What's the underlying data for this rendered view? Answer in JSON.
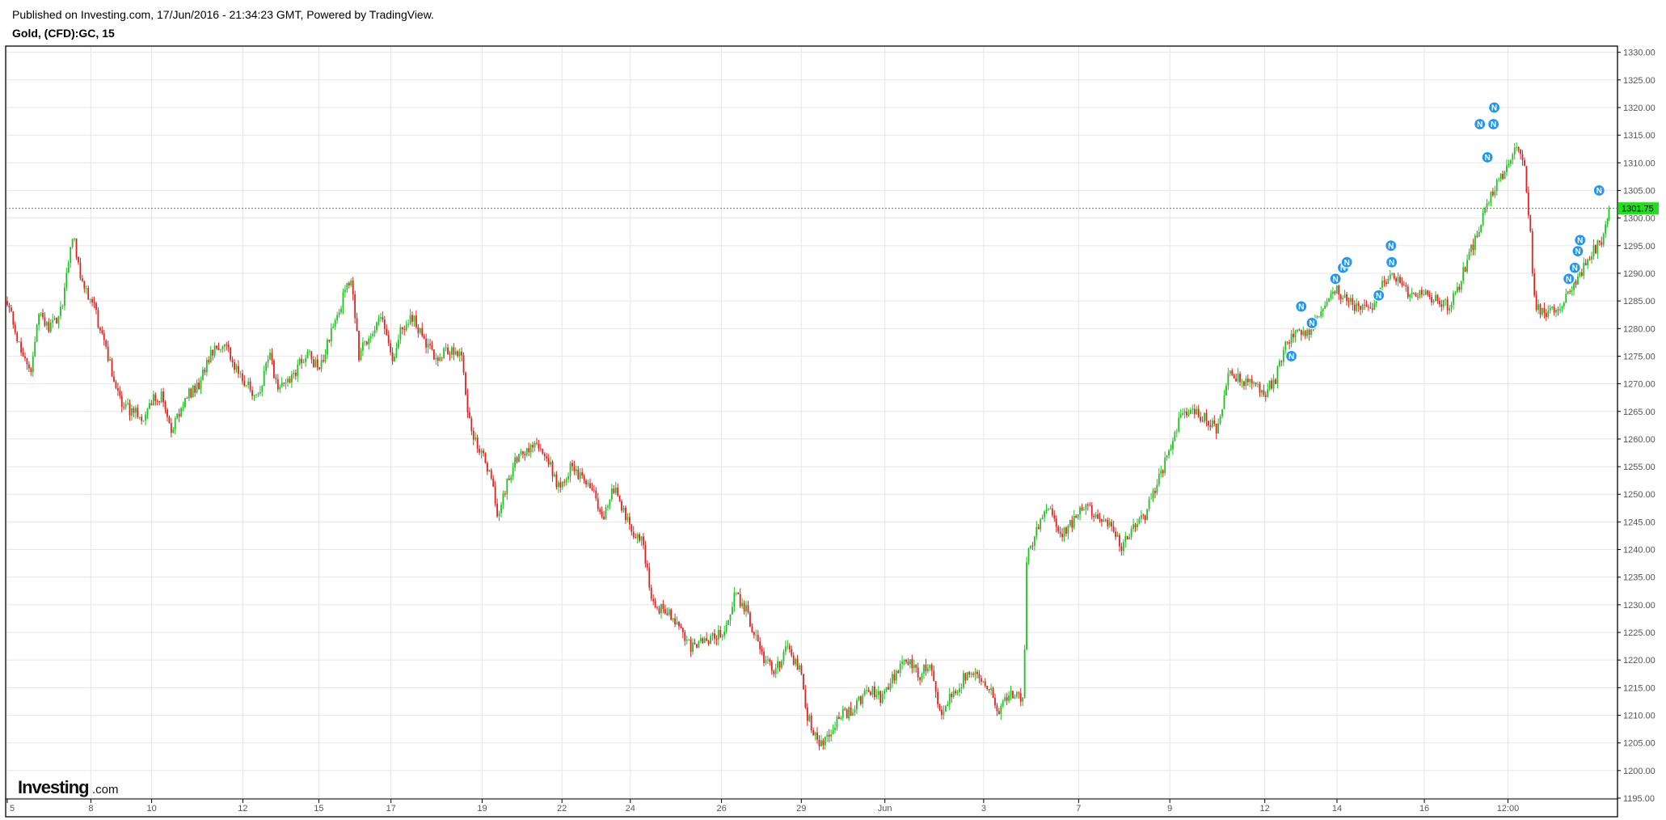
{
  "header": {
    "published": "Published on Investing.com, 17/Jun/2016 - 21:34:23 GMT, Powered by TradingView.",
    "symbol": "Gold, (CFD):GC, 15"
  },
  "logo": {
    "main": "Investing",
    "domain": ".com"
  },
  "colors": {
    "up": "#22c022",
    "down": "#dd2222",
    "grid": "#e6e6e6",
    "frame": "#000000",
    "price_line": "#22aa22",
    "price_tag": "#22dd22",
    "news": "#2196f3"
  },
  "news_icon_label": "N",
  "current_price_label": "1301.75",
  "chart_data": {
    "type": "candlestick",
    "title": "Gold, (CFD):GC, 15",
    "y_range": [
      1195,
      1332
    ],
    "y_ticks": [
      "1195.00",
      "1200.00",
      "1205.00",
      "1210.00",
      "1215.00",
      "1220.00",
      "1225.00",
      "1230.00",
      "1235.00",
      "1240.00",
      "1245.00",
      "1250.00",
      "1255.00",
      "1260.00",
      "1265.00",
      "1270.00",
      "1275.00",
      "1280.00",
      "1285.00",
      "1290.00",
      "1295.00",
      "1300.00",
      "1305.00",
      "1310.00",
      "1315.00",
      "1320.00",
      "1325.00",
      "1330.00"
    ],
    "x_tick_labels": [
      "5",
      "8",
      "10",
      "12",
      "15",
      "17",
      "19",
      "22",
      "24",
      "26",
      "29",
      "Jun",
      "3",
      "7",
      "9",
      "12",
      "14",
      "16",
      "12:00"
    ],
    "current_price": 1301.75,
    "price_path": [
      [
        0.0,
        1285
      ],
      [
        1.3,
        1278
      ],
      [
        3.2,
        1272
      ],
      [
        4.0,
        1283
      ],
      [
        5.4,
        1280
      ],
      [
        6.6,
        1282
      ],
      [
        7.3,
        1285
      ],
      [
        8.6,
        1297
      ],
      [
        9.9,
        1288
      ],
      [
        11.2,
        1285
      ],
      [
        13.0,
        1276
      ],
      [
        15.1,
        1266
      ],
      [
        17.8,
        1264
      ],
      [
        19.0,
        1267
      ],
      [
        20.4,
        1268
      ],
      [
        21.5,
        1261
      ],
      [
        22.8,
        1265
      ],
      [
        23.9,
        1268
      ],
      [
        25.3,
        1270
      ],
      [
        27.0,
        1276
      ],
      [
        28.7,
        1278
      ],
      [
        29.8,
        1273
      ],
      [
        31.6,
        1270
      ],
      [
        33.2,
        1267
      ],
      [
        34.4,
        1276
      ],
      [
        35.5,
        1269
      ],
      [
        37.8,
        1272
      ],
      [
        39.5,
        1276
      ],
      [
        41.1,
        1272
      ],
      [
        42.2,
        1278
      ],
      [
        43.5,
        1283
      ],
      [
        44.6,
        1287
      ],
      [
        45.3,
        1289
      ],
      [
        46.3,
        1275
      ],
      [
        47.7,
        1279
      ],
      [
        49.3,
        1282
      ],
      [
        50.7,
        1274
      ],
      [
        51.9,
        1280
      ],
      [
        53.6,
        1282
      ],
      [
        55.0,
        1277
      ],
      [
        56.4,
        1275
      ],
      [
        58.1,
        1276
      ],
      [
        59.8,
        1275
      ],
      [
        60.9,
        1262
      ],
      [
        62.3,
        1258
      ],
      [
        63.9,
        1252
      ],
      [
        64.6,
        1246
      ],
      [
        65.8,
        1252
      ],
      [
        66.9,
        1256
      ],
      [
        68.4,
        1258
      ],
      [
        70.1,
        1259
      ],
      [
        71.2,
        1256
      ],
      [
        72.5,
        1251
      ],
      [
        74.2,
        1255
      ],
      [
        75.6,
        1253
      ],
      [
        77.3,
        1250
      ],
      [
        78.4,
        1246
      ],
      [
        79.8,
        1251
      ],
      [
        80.8,
        1248
      ],
      [
        81.9,
        1244
      ],
      [
        83.5,
        1242
      ],
      [
        85.0,
        1230
      ],
      [
        86.7,
        1229
      ],
      [
        88.2,
        1227
      ],
      [
        90.0,
        1222
      ],
      [
        91.7,
        1224
      ],
      [
        93.2,
        1224
      ],
      [
        94.8,
        1226
      ],
      [
        95.7,
        1232
      ],
      [
        97.2,
        1229
      ],
      [
        98.5,
        1224
      ],
      [
        99.7,
        1220
      ],
      [
        101.1,
        1218
      ],
      [
        102.5,
        1222
      ],
      [
        104.2,
        1219
      ],
      [
        105.3,
        1210
      ],
      [
        106.8,
        1204
      ],
      [
        108.2,
        1207
      ],
      [
        109.7,
        1210
      ],
      [
        111.5,
        1211
      ],
      [
        113.2,
        1215
      ],
      [
        115.0,
        1213
      ],
      [
        116.7,
        1217
      ],
      [
        118.4,
        1220
      ],
      [
        120.2,
        1217
      ],
      [
        121.3,
        1220
      ],
      [
        122.9,
        1210
      ],
      [
        124.4,
        1214
      ],
      [
        126.1,
        1217
      ],
      [
        127.6,
        1218
      ],
      [
        129.2,
        1215
      ],
      [
        130.5,
        1211
      ],
      [
        132.0,
        1214
      ],
      [
        133.1,
        1213
      ],
      [
        133.8,
        1213
      ],
      [
        134.1,
        1238
      ],
      [
        135.5,
        1244
      ],
      [
        137.0,
        1248
      ],
      [
        138.6,
        1243
      ],
      [
        140.3,
        1245
      ],
      [
        141.8,
        1248
      ],
      [
        143.7,
        1246
      ],
      [
        145.2,
        1244
      ],
      [
        146.7,
        1240
      ],
      [
        148.0,
        1244
      ],
      [
        149.7,
        1246
      ],
      [
        151.4,
        1252
      ],
      [
        152.9,
        1258
      ],
      [
        154.3,
        1264
      ],
      [
        156.0,
        1265
      ],
      [
        157.4,
        1264
      ],
      [
        159.1,
        1262
      ],
      [
        159.8,
        1264
      ],
      [
        160.8,
        1272
      ],
      [
        162.0,
        1271
      ],
      [
        163.8,
        1270
      ],
      [
        165.4,
        1268
      ],
      [
        166.9,
        1271
      ],
      [
        168.5,
        1278
      ],
      [
        170.1,
        1279
      ],
      [
        171.4,
        1280
      ],
      [
        173.3,
        1284
      ],
      [
        174.8,
        1287
      ],
      [
        176.2,
        1285
      ],
      [
        177.6,
        1284
      ],
      [
        179.0,
        1283
      ],
      [
        180.4,
        1286
      ],
      [
        181.8,
        1290
      ],
      [
        183.3,
        1288
      ],
      [
        184.9,
        1286
      ],
      [
        186.4,
        1286
      ],
      [
        188.0,
        1285
      ],
      [
        189.8,
        1284
      ],
      [
        191.1,
        1288
      ],
      [
        192.4,
        1293
      ],
      [
        193.8,
        1299
      ],
      [
        195.3,
        1304
      ],
      [
        196.8,
        1308
      ],
      [
        198.5,
        1313
      ],
      [
        199.6,
        1310
      ],
      [
        200.3,
        1300
      ],
      [
        201.0,
        1285
      ],
      [
        202.3,
        1282
      ],
      [
        203.8,
        1284
      ],
      [
        205.5,
        1286
      ],
      [
        207.1,
        1290
      ],
      [
        208.6,
        1294
      ],
      [
        210.0,
        1296
      ],
      [
        210.8,
        1301.75
      ]
    ],
    "news_markers": [
      [
        169.0,
        1275
      ],
      [
        170.3,
        1284
      ],
      [
        171.7,
        1281
      ],
      [
        174.8,
        1289
      ],
      [
        175.8,
        1291
      ],
      [
        176.3,
        1292
      ],
      [
        180.5,
        1286
      ],
      [
        182.1,
        1295
      ],
      [
        182.2,
        1292
      ],
      [
        193.8,
        1317
      ],
      [
        194.8,
        1311
      ],
      [
        195.6,
        1317
      ],
      [
        195.7,
        1320
      ],
      [
        205.5,
        1289
      ],
      [
        206.3,
        1291
      ],
      [
        206.7,
        1294
      ],
      [
        207.0,
        1296
      ],
      [
        209.5,
        1305
      ]
    ]
  }
}
